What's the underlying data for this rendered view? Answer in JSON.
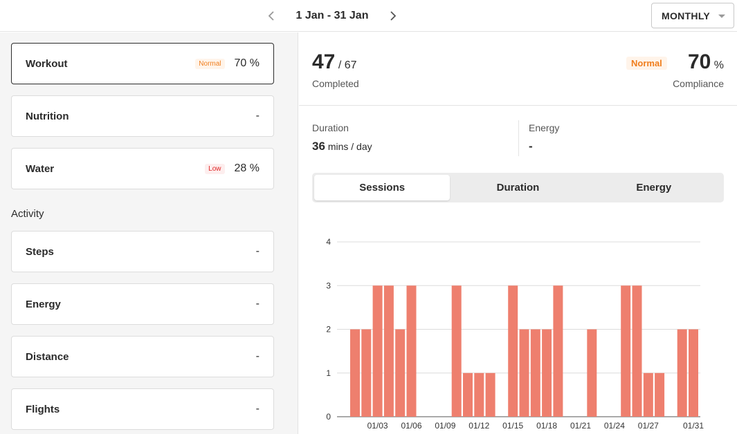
{
  "header": {
    "date_range": "1 Jan - 31 Jan",
    "period": "MONTHLY"
  },
  "left": {
    "cards_top": [
      {
        "name": "Workout",
        "badge": "Normal",
        "badge_type": "normal",
        "value": "70 %",
        "active": true
      },
      {
        "name": "Nutrition",
        "badge": "",
        "value": "-"
      },
      {
        "name": "Water",
        "badge": "Low",
        "badge_type": "low",
        "value": "28 %"
      }
    ],
    "activity_label": "Activity",
    "cards_activity": [
      {
        "name": "Steps",
        "value": "-"
      },
      {
        "name": "Energy",
        "value": "-"
      },
      {
        "name": "Distance",
        "value": "-"
      },
      {
        "name": "Flights",
        "value": "-"
      }
    ]
  },
  "summary": {
    "completed": "47",
    "total": "/ 67",
    "completed_label": "Completed",
    "compliance_badge": "Normal",
    "compliance": "70",
    "compliance_unit": "%",
    "compliance_label": "Compliance"
  },
  "metrics": {
    "duration_label": "Duration",
    "duration_value": "36",
    "duration_unit": "mins / day",
    "energy_label": "Energy",
    "energy_value": "-"
  },
  "tabs": [
    "Sessions",
    "Duration",
    "Energy"
  ],
  "active_tab": 0,
  "colors": {
    "bar": "#ee7f6e",
    "accent_normal": "#f07e1e",
    "accent_low": "#e02424"
  },
  "chart_data": {
    "type": "bar",
    "categories": [
      "01/01",
      "01/02",
      "01/03",
      "01/04",
      "01/05",
      "01/06",
      "01/07",
      "01/08",
      "01/09",
      "01/10",
      "01/11",
      "01/12",
      "01/13",
      "01/14",
      "01/15",
      "01/16",
      "01/17",
      "01/18",
      "01/19",
      "01/20",
      "01/21",
      "01/22",
      "01/23",
      "01/24",
      "01/25",
      "01/26",
      "01/27",
      "01/28",
      "01/29",
      "01/30",
      "01/31"
    ],
    "values": [
      2,
      2,
      3,
      3,
      2,
      3,
      0,
      0,
      0,
      3,
      1,
      1,
      1,
      0,
      3,
      2,
      2,
      2,
      3,
      0,
      0,
      2,
      0,
      0,
      3,
      3,
      1,
      1,
      0,
      2,
      2
    ],
    "tick_labels": [
      "01/03",
      "01/06",
      "01/09",
      "01/12",
      "01/15",
      "01/18",
      "01/21",
      "01/24",
      "01/27",
      "01/31"
    ],
    "yticks": [
      0,
      1,
      2,
      3,
      4
    ],
    "ylim": [
      0,
      4
    ],
    "title": "",
    "xlabel": "",
    "ylabel": "",
    "grid": true
  }
}
